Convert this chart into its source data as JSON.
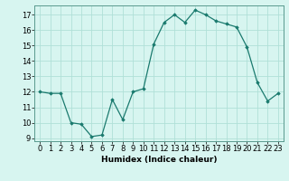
{
  "x": [
    0,
    1,
    2,
    3,
    4,
    5,
    6,
    7,
    8,
    9,
    10,
    11,
    12,
    13,
    14,
    15,
    16,
    17,
    18,
    19,
    20,
    21,
    22,
    23
  ],
  "y": [
    12.0,
    11.9,
    11.9,
    10.0,
    9.9,
    9.1,
    9.2,
    11.5,
    10.2,
    12.0,
    12.2,
    15.1,
    16.5,
    17.0,
    16.5,
    17.3,
    17.0,
    16.6,
    16.4,
    16.2,
    14.9,
    12.6,
    11.4,
    11.9
  ],
  "line_color": "#1a7a6e",
  "marker": "D",
  "marker_size": 1.8,
  "bg_color": "#d7f5f0",
  "grid_color": "#b0e0d8",
  "xlabel": "Humidex (Indice chaleur)",
  "xlim": [
    -0.5,
    23.5
  ],
  "ylim": [
    8.8,
    17.6
  ],
  "yticks": [
    9,
    10,
    11,
    12,
    13,
    14,
    15,
    16,
    17
  ],
  "xtick_labels": [
    "0",
    "1",
    "2",
    "3",
    "4",
    "5",
    "6",
    "7",
    "8",
    "9",
    "10",
    "11",
    "12",
    "13",
    "14",
    "15",
    "16",
    "17",
    "18",
    "19",
    "20",
    "21",
    "22",
    "23"
  ],
  "xlabel_fontsize": 6.5,
  "tick_fontsize": 6.0
}
